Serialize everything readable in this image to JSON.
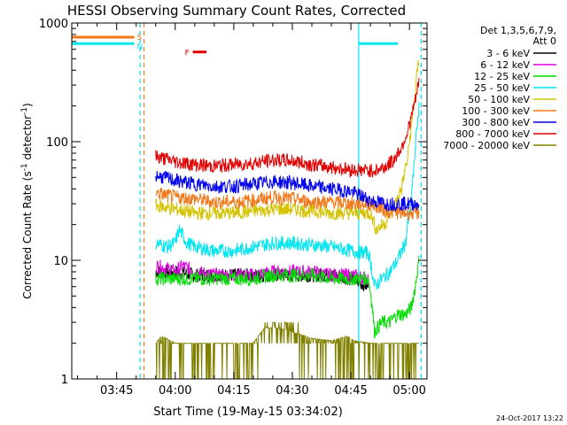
{
  "chart_data": {
    "type": "line",
    "title": "HESSI Observing Summary Count Rates, Corrected",
    "xlabel": "Start Time (19-May-15 03:34:02)",
    "ylabel_main": "Corrected Count Rate (s",
    "ylabel_sup1": "-1",
    "ylabel_mid": " detector",
    "ylabel_sup2": "-1",
    "ylabel_end": ")",
    "y_scale": "log",
    "ylim": [
      1,
      1000
    ],
    "xlim_minutes": [
      213.5,
      304.5
    ],
    "x_ticks": [
      {
        "minute": 225,
        "label": "03:45"
      },
      {
        "minute": 240,
        "label": "04:00"
      },
      {
        "minute": 255,
        "label": "04:15"
      },
      {
        "minute": 270,
        "label": "04:30"
      },
      {
        "minute": 285,
        "label": "04:45"
      },
      {
        "minute": 300,
        "label": "05:00"
      }
    ],
    "y_ticks": [
      {
        "value": 1,
        "label": "1"
      },
      {
        "value": 10,
        "label": "10"
      },
      {
        "value": 100,
        "label": "100"
      },
      {
        "value": 1000,
        "label": "1000"
      }
    ],
    "legend_header_1": "Det 1,3,5,6,7,9,",
    "legend_header_2": "Att 0",
    "legend_position": "right",
    "date_stamp": "24-Oct-2017 13:22",
    "flags": [
      {
        "label": "S",
        "color": "#f07818",
        "start": 213.5,
        "end": 229.5,
        "y": 760
      },
      {
        "label": "N",
        "color": "#00e5ee",
        "start": 213.5,
        "end": 229.5,
        "y": 670
      },
      {
        "label": "N",
        "color": "#00e5ee",
        "start": 287,
        "end": 297,
        "y": 670
      },
      {
        "label": "F",
        "color": "#e00000",
        "start": 244.5,
        "end": 248,
        "y": 570
      }
    ],
    "night_lines": [
      {
        "minute": 231,
        "color": "#00e5ee",
        "style": "dashed"
      },
      {
        "minute": 287,
        "color": "#00e5ee",
        "style": "solid"
      },
      {
        "minute": 303,
        "color": "#00e5ee",
        "style": "dashed"
      }
    ],
    "saa_lines": [
      {
        "minute": 232,
        "color": "#f07818",
        "style": "dashed"
      }
    ],
    "series": [
      {
        "name": "3 - 6 keV",
        "color": "#000000",
        "x": [
          235,
          240,
          245,
          250,
          255,
          260,
          265,
          270,
          275,
          280,
          285,
          289.5
        ],
        "y": [
          8,
          8,
          7.5,
          7.5,
          7.5,
          7.5,
          7.5,
          7.5,
          7.5,
          7.5,
          7.0,
          6.0
        ]
      },
      {
        "name": "6 - 12 keV",
        "color": "#e000e0",
        "x": [
          235,
          238,
          240,
          242,
          245,
          250,
          255,
          260,
          265,
          270,
          275,
          280,
          285,
          289.5
        ],
        "y": [
          9,
          8.5,
          8,
          9,
          8,
          7.5,
          7.5,
          7.5,
          8,
          8,
          8,
          7.5,
          7.5,
          7
        ]
      },
      {
        "name": "12 - 25 keV",
        "color": "#00dd00",
        "x": [
          235,
          240,
          245,
          250,
          255,
          260,
          265,
          270,
          275,
          280,
          285,
          289.5,
          291,
          293,
          295,
          297,
          299,
          300.5,
          301.5,
          302.5
        ],
        "y": [
          7,
          7,
          7,
          7,
          7,
          7,
          7.5,
          7.5,
          7.5,
          7,
          7,
          7,
          2.5,
          3,
          3,
          3.5,
          3.5,
          4,
          6,
          10
        ]
      },
      {
        "name": "25 - 50 keV",
        "color": "#00e5ee",
        "x": [
          235,
          238,
          240,
          241,
          243,
          245,
          250,
          255,
          260,
          265,
          270,
          275,
          280,
          285,
          289.5,
          291,
          293,
          295,
          297,
          299,
          300.5,
          301.5,
          302.5
        ],
        "y": [
          14,
          13,
          14,
          18,
          14,
          13,
          12,
          12,
          13,
          14,
          14,
          13.5,
          13,
          12,
          11.5,
          6,
          7,
          8,
          10,
          14,
          30,
          80,
          200
        ]
      },
      {
        "name": "50 - 100 keV",
        "color": "#d4c300",
        "x": [
          235,
          240,
          245,
          250,
          255,
          260,
          265,
          270,
          275,
          280,
          285,
          290,
          291.5,
          294,
          296,
          298,
          299.5,
          300.5,
          301.5,
          302.5
        ],
        "y": [
          29,
          27,
          25,
          25,
          25,
          26,
          27,
          27,
          26,
          25,
          25,
          25,
          18,
          21,
          28,
          40,
          70,
          130,
          250,
          520
        ]
      },
      {
        "name": "100 - 300 keV",
        "color": "#f07818",
        "x": [
          235,
          240,
          245,
          250,
          255,
          260,
          265,
          270,
          275,
          280,
          285,
          290,
          294,
          298,
          302.5
        ],
        "y": [
          37,
          34,
          33,
          31,
          31,
          32,
          34,
          33,
          31,
          31,
          30,
          30,
          26,
          25,
          25
        ]
      },
      {
        "name": "300 - 800 keV",
        "color": "#0000ee",
        "x": [
          235,
          240,
          245,
          250,
          255,
          260,
          265,
          270,
          275,
          280,
          285,
          290,
          294,
          298,
          302.5
        ],
        "y": [
          52,
          47,
          44,
          42,
          42,
          44,
          46,
          45,
          42,
          40,
          38,
          32,
          30,
          30,
          30
        ]
      },
      {
        "name": "800 - 7000 keV",
        "color": "#e00000",
        "x": [
          235,
          240,
          245,
          250,
          255,
          260,
          265,
          270,
          275,
          280,
          285,
          290,
          292,
          294,
          296,
          298,
          299.5,
          300.5,
          301.5,
          302.5
        ],
        "y": [
          75,
          68,
          64,
          62,
          64,
          66,
          70,
          69,
          64,
          61,
          58,
          57,
          58,
          62,
          70,
          90,
          120,
          160,
          220,
          320
        ]
      },
      {
        "name": "7000 - 20000 keV",
        "color": "#808000",
        "x": [
          235,
          236.5,
          240,
          245,
          250,
          255,
          260,
          263,
          266,
          270,
          275,
          280,
          284,
          286,
          290,
          295,
          300,
          302.5
        ],
        "y": [
          2,
          2.3,
          2,
          2,
          2,
          2,
          2,
          2.7,
          2.7,
          2.5,
          2.2,
          2.1,
          2.3,
          2.1,
          2,
          2,
          2,
          2
        ]
      }
    ]
  }
}
